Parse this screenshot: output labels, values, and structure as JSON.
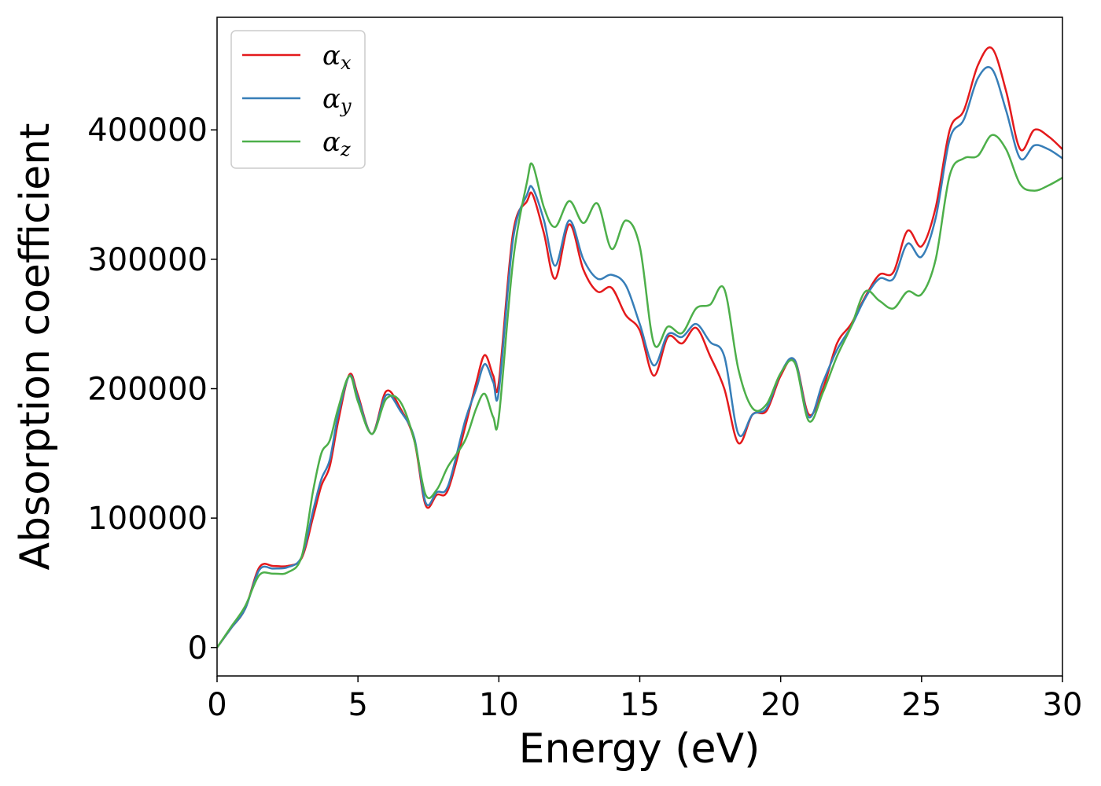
{
  "chart_data": {
    "type": "line",
    "title": "",
    "xlabel": "Energy (eV)",
    "ylabel": "Absorption coefficient",
    "xlim": [
      0,
      30
    ],
    "ylim": [
      -22000,
      487000
    ],
    "xticks": [
      0,
      5,
      10,
      15,
      20,
      25,
      30
    ],
    "yticks": [
      0,
      100000,
      200000,
      300000,
      400000
    ],
    "xtick_labels": [
      "0",
      "5",
      "10",
      "15",
      "20",
      "25",
      "30"
    ],
    "ytick_labels": [
      "0",
      "100000",
      "200000",
      "300000",
      "400000"
    ],
    "grid": false,
    "legend": "top-left",
    "series": [
      {
        "name": "αx",
        "base": "α",
        "sub": "x",
        "color": "#e41a1c",
        "x": [
          0,
          0.5,
          1.0,
          1.5,
          2.0,
          2.5,
          3.0,
          3.4,
          3.7,
          4.0,
          4.3,
          4.7,
          5.0,
          5.5,
          6.0,
          6.5,
          7.0,
          7.4,
          7.8,
          8.2,
          8.8,
          9.2,
          9.5,
          9.8,
          10.0,
          10.5,
          11.0,
          11.2,
          11.6,
          12.0,
          12.5,
          13.0,
          13.5,
          14.0,
          14.5,
          15.0,
          15.5,
          16.0,
          16.5,
          17.0,
          17.5,
          18.0,
          18.5,
          19.0,
          19.5,
          20.0,
          20.5,
          21.0,
          21.5,
          22.0,
          22.5,
          23.0,
          23.5,
          24.0,
          24.5,
          25.0,
          25.5,
          26.0,
          26.5,
          27.0,
          27.5,
          28.0,
          28.5,
          29.0,
          29.5,
          30.0
        ],
        "y": [
          0,
          15000,
          30000,
          62000,
          63000,
          63000,
          69000,
          100000,
          125000,
          140000,
          175000,
          211000,
          195000,
          165000,
          198000,
          185000,
          160000,
          110000,
          118000,
          122000,
          170000,
          205000,
          226000,
          210000,
          205000,
          320000,
          345000,
          350000,
          320000,
          285000,
          327000,
          292000,
          275000,
          278000,
          257000,
          245000,
          210000,
          240000,
          235000,
          247000,
          225000,
          200000,
          158000,
          180000,
          183000,
          210000,
          222000,
          180000,
          200000,
          235000,
          250000,
          271000,
          288000,
          290000,
          322000,
          310000,
          340000,
          400000,
          415000,
          450000,
          463000,
          430000,
          385000,
          400000,
          395000,
          385000
        ]
      },
      {
        "name": "αy",
        "base": "α",
        "sub": "y",
        "color": "#377eb8",
        "x": [
          0,
          0.5,
          1.0,
          1.5,
          2.0,
          2.5,
          3.0,
          3.4,
          3.7,
          4.0,
          4.3,
          4.7,
          5.0,
          5.5,
          6.0,
          6.5,
          7.0,
          7.4,
          7.8,
          8.2,
          8.8,
          9.2,
          9.5,
          9.8,
          10.0,
          10.5,
          11.0,
          11.2,
          11.6,
          12.0,
          12.5,
          13.0,
          13.5,
          14.0,
          14.5,
          15.0,
          15.5,
          16.0,
          16.5,
          17.0,
          17.5,
          18.0,
          18.5,
          19.0,
          19.5,
          20.0,
          20.5,
          21.0,
          21.5,
          22.0,
          22.5,
          23.0,
          23.5,
          24.0,
          24.5,
          25.0,
          25.5,
          26.0,
          26.5,
          27.0,
          27.5,
          28.0,
          28.5,
          29.0,
          29.5,
          30.0
        ],
        "y": [
          0,
          15000,
          30000,
          60000,
          61000,
          62000,
          70000,
          105000,
          130000,
          145000,
          180000,
          210000,
          193000,
          165000,
          195000,
          183000,
          162000,
          112000,
          120000,
          125000,
          175000,
          200000,
          219000,
          205000,
          198000,
          315000,
          350000,
          355000,
          330000,
          295000,
          330000,
          300000,
          285000,
          288000,
          280000,
          250000,
          218000,
          242000,
          240000,
          250000,
          236000,
          225000,
          165000,
          180000,
          185000,
          212000,
          222000,
          178000,
          205000,
          230000,
          248000,
          270000,
          285000,
          285000,
          312000,
          302000,
          332000,
          393000,
          408000,
          440000,
          447000,
          415000,
          378000,
          388000,
          385000,
          378000
        ]
      },
      {
        "name": "αz",
        "base": "α",
        "sub": "z",
        "color": "#4daf4a",
        "x": [
          0,
          0.5,
          1.0,
          1.5,
          2.0,
          2.5,
          3.0,
          3.4,
          3.7,
          4.0,
          4.3,
          4.7,
          5.0,
          5.5,
          6.0,
          6.5,
          7.0,
          7.4,
          7.8,
          8.2,
          8.8,
          9.2,
          9.5,
          9.8,
          10.0,
          10.5,
          11.0,
          11.2,
          11.6,
          12.0,
          12.5,
          13.0,
          13.5,
          14.0,
          14.5,
          15.0,
          15.5,
          16.0,
          16.5,
          17.0,
          17.5,
          18.0,
          18.5,
          19.0,
          19.5,
          20.0,
          20.5,
          21.0,
          21.5,
          22.0,
          22.5,
          23.0,
          23.5,
          24.0,
          24.5,
          25.0,
          25.5,
          26.0,
          26.5,
          27.0,
          27.5,
          28.0,
          28.5,
          29.0,
          29.5,
          30.0
        ],
        "y": [
          0,
          16000,
          32000,
          56000,
          57000,
          58000,
          70000,
          120000,
          150000,
          160000,
          185000,
          210000,
          190000,
          165000,
          192000,
          190000,
          160000,
          118000,
          122000,
          140000,
          160000,
          185000,
          196000,
          178000,
          178000,
          298000,
          360000,
          373000,
          340000,
          325000,
          345000,
          328000,
          343000,
          308000,
          330000,
          310000,
          235000,
          248000,
          243000,
          262000,
          265000,
          277000,
          215000,
          185000,
          188000,
          212000,
          220000,
          175000,
          197000,
          225000,
          248000,
          275000,
          268000,
          262000,
          275000,
          273000,
          300000,
          365000,
          378000,
          380000,
          396000,
          385000,
          358000,
          353000,
          357000,
          363000
        ]
      }
    ]
  }
}
